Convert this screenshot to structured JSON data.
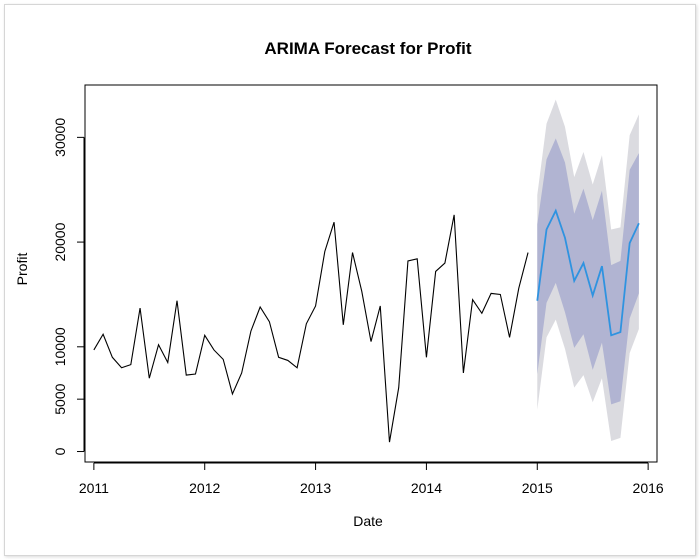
{
  "chart_data": {
    "type": "line",
    "title": "ARIMA Forecast for Profit",
    "xlabel": "Date",
    "ylabel": "Profit",
    "xlim": [
      2010.92,
      2016.08
    ],
    "ylim": [
      -1000,
      35000
    ],
    "x_ticks": [
      2011,
      2012,
      2013,
      2014,
      2015,
      2016
    ],
    "x_tick_labels": [
      "2011",
      "2012",
      "2013",
      "2014",
      "2015",
      "2016"
    ],
    "y_ticks": [
      0,
      5000,
      10000,
      20000,
      30000
    ],
    "y_tick_labels": [
      "0",
      "5000",
      "10000",
      "20000",
      "30000"
    ],
    "grid": false,
    "series": [
      {
        "role": "history",
        "color": "#000000",
        "x_start": 2011.0,
        "step": 0.0833333,
        "values": [
          9700,
          11200,
          9000,
          8000,
          8300,
          13700,
          7000,
          10200,
          8500,
          14400,
          7300,
          7400,
          11100,
          9700,
          8800,
          5500,
          7500,
          11500,
          13800,
          12400,
          9000,
          8700,
          8000,
          12200,
          13900,
          19100,
          21900,
          12100,
          19000,
          15300,
          10500,
          13900,
          900,
          6100,
          18200,
          18400,
          9000,
          17200,
          18000,
          22600,
          7500,
          14500,
          13200,
          15100,
          15000,
          10900,
          15600,
          19000
        ]
      },
      {
        "role": "forecast",
        "color": "#2f93e0",
        "x_start": 2015.0,
        "step": 0.0833333,
        "values": [
          14400,
          21200,
          23000,
          20400,
          16300,
          18000,
          14900,
          17700,
          11100,
          11400,
          19900,
          21800
        ],
        "lo80": [
          7400,
          14200,
          16100,
          13300,
          9900,
          11200,
          7800,
          10400,
          4500,
          4800,
          12700,
          15100
        ],
        "hi80": [
          21700,
          27900,
          29900,
          27600,
          22700,
          25100,
          22100,
          24900,
          17800,
          18200,
          26900,
          28500
        ],
        "lo95": [
          4000,
          10900,
          12600,
          9800,
          6100,
          7300,
          4700,
          7000,
          1000,
          1300,
          9400,
          11700
        ],
        "hi95": [
          24500,
          31300,
          33600,
          31000,
          26200,
          28600,
          25500,
          28300,
          21200,
          21400,
          30200,
          32200
        ]
      }
    ],
    "band_colors": {
      "interval_95": "#dbdbe0",
      "interval_80": "#b1b4d2"
    }
  }
}
